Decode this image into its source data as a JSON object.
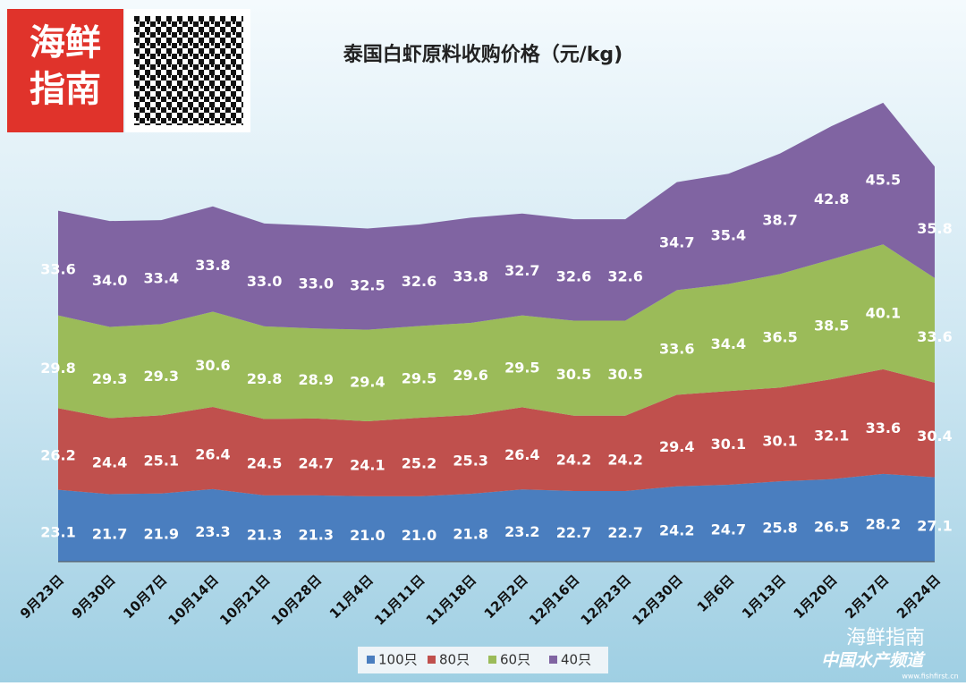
{
  "brand": {
    "logo_top": "海鲜",
    "logo_bottom": "指南",
    "watermark": "海鲜指南",
    "channel": "中国水产频道",
    "site": "www.fishfirst.cn"
  },
  "chart_data": {
    "type": "stacked-area",
    "title": "泰国白虾原料收购价格（元/kg)",
    "categories": [
      "9月23日",
      "9月30日",
      "10月7日",
      "10月14日",
      "10月21日",
      "10月28日",
      "11月4日",
      "11月11日",
      "11月18日",
      "12月2日",
      "12月16日",
      "12月23日",
      "12月30日",
      "1月6日",
      "1月13日",
      "1月20日",
      "2月17日",
      "2月24日"
    ],
    "ylim": [
      0,
      160
    ],
    "legend": "bottom",
    "series": [
      {
        "name": "100只",
        "color": "#4a7ebf",
        "values": [
          23.1,
          21.7,
          21.9,
          23.3,
          21.3,
          21.3,
          21.0,
          21.0,
          21.8,
          23.2,
          22.7,
          22.7,
          24.2,
          24.7,
          25.8,
          26.5,
          28.2,
          27.1
        ],
        "value_labels": [
          "23.1",
          "21.7",
          "21.9",
          "23.3",
          "21.3",
          "21.3",
          "21.0",
          "21.0",
          "21.8",
          "23.2",
          "22.7",
          "22.7",
          "24.2",
          "24.7",
          "25.8",
          "26.5",
          "28.2",
          "27.1"
        ]
      },
      {
        "name": "80只",
        "color": "#c0504d",
        "values": [
          26.2,
          24.4,
          25.1,
          26.4,
          24.5,
          24.7,
          24.1,
          25.2,
          25.3,
          26.4,
          24.2,
          24.2,
          29.4,
          30.1,
          30.1,
          32.1,
          33.6,
          30.4
        ],
        "value_labels": [
          "26.2",
          "24.4",
          "25.1",
          "26.4",
          "24.5",
          "24.7",
          "24.1",
          "25.2",
          "25.3",
          "26.4",
          "24.2",
          "24.2",
          "29.4",
          "30.1",
          "30.1",
          "32.1",
          "33.6",
          "30.4"
        ]
      },
      {
        "name": "60只",
        "color": "#9bbb59",
        "values": [
          29.8,
          29.3,
          29.3,
          30.6,
          29.8,
          28.9,
          29.4,
          29.5,
          29.6,
          29.5,
          30.5,
          30.5,
          33.6,
          34.4,
          36.5,
          38.5,
          40.1,
          33.6
        ],
        "value_labels": [
          "29.8",
          "29.3",
          "29.3",
          "30.6",
          "29.8",
          "28.9",
          "29.4",
          "29.5",
          "29.6",
          "29.5",
          "30.5",
          "30.5",
          "33.6",
          "34.4",
          "36.5",
          "38.5",
          "40.1",
          "33.6"
        ]
      },
      {
        "name": "40只",
        "color": "#8064a2",
        "values": [
          33.6,
          34.0,
          33.4,
          33.8,
          33.0,
          33.0,
          32.5,
          32.6,
          33.8,
          32.7,
          32.6,
          32.6,
          34.7,
          35.4,
          38.7,
          42.8,
          45.5,
          35.8
        ],
        "value_labels": [
          "33.6",
          "34.0",
          "33.4",
          "33.8",
          "33.0",
          "33.0",
          "32.5",
          "32.6",
          "33.8",
          "32.7",
          "32.6",
          "32.6",
          "34.7",
          "35.4",
          "38.7",
          "42.8",
          "45.5",
          "35.8"
        ]
      }
    ]
  }
}
